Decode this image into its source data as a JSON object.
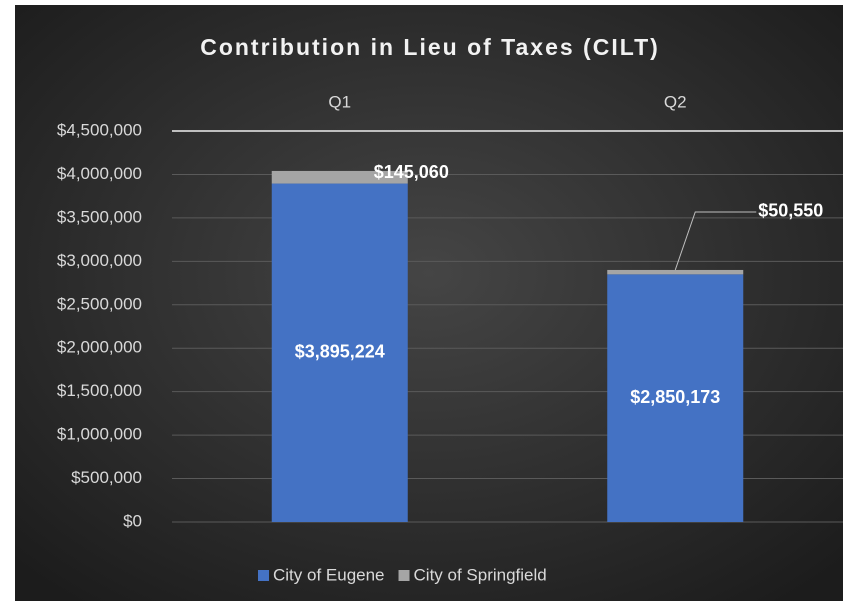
{
  "chart_data": {
    "type": "stacked_bar",
    "title": "Contribution in Lieu of Taxes (CILT)",
    "categories": [
      "Q1",
      "Q2"
    ],
    "series": [
      {
        "name": "City of Eugene",
        "color": "#4472c4",
        "values": [
          3895224,
          2850173
        ],
        "value_labels": [
          "$3,895,224",
          "$2,850,173"
        ]
      },
      {
        "name": "City of Springfield",
        "color": "#a5a5a5",
        "values": [
          145060,
          50550
        ],
        "value_labels": [
          "$145,060",
          "$50,550"
        ]
      }
    ],
    "ylim": [
      0,
      4500000
    ],
    "yticks": [
      {
        "value": 0,
        "label": "$0"
      },
      {
        "value": 500000,
        "label": "$500,000"
      },
      {
        "value": 1000000,
        "label": "$1,000,000"
      },
      {
        "value": 1500000,
        "label": "$1,500,000"
      },
      {
        "value": 2000000,
        "label": "$2,000,000"
      },
      {
        "value": 2500000,
        "label": "$2,500,000"
      },
      {
        "value": 3000000,
        "label": "$3,000,000"
      },
      {
        "value": 3500000,
        "label": "$3,500,000"
      },
      {
        "value": 4000000,
        "label": "$4,000,000"
      },
      {
        "value": 4500000,
        "label": "$4,500,000"
      }
    ],
    "grid": true,
    "legend": "bottom"
  }
}
